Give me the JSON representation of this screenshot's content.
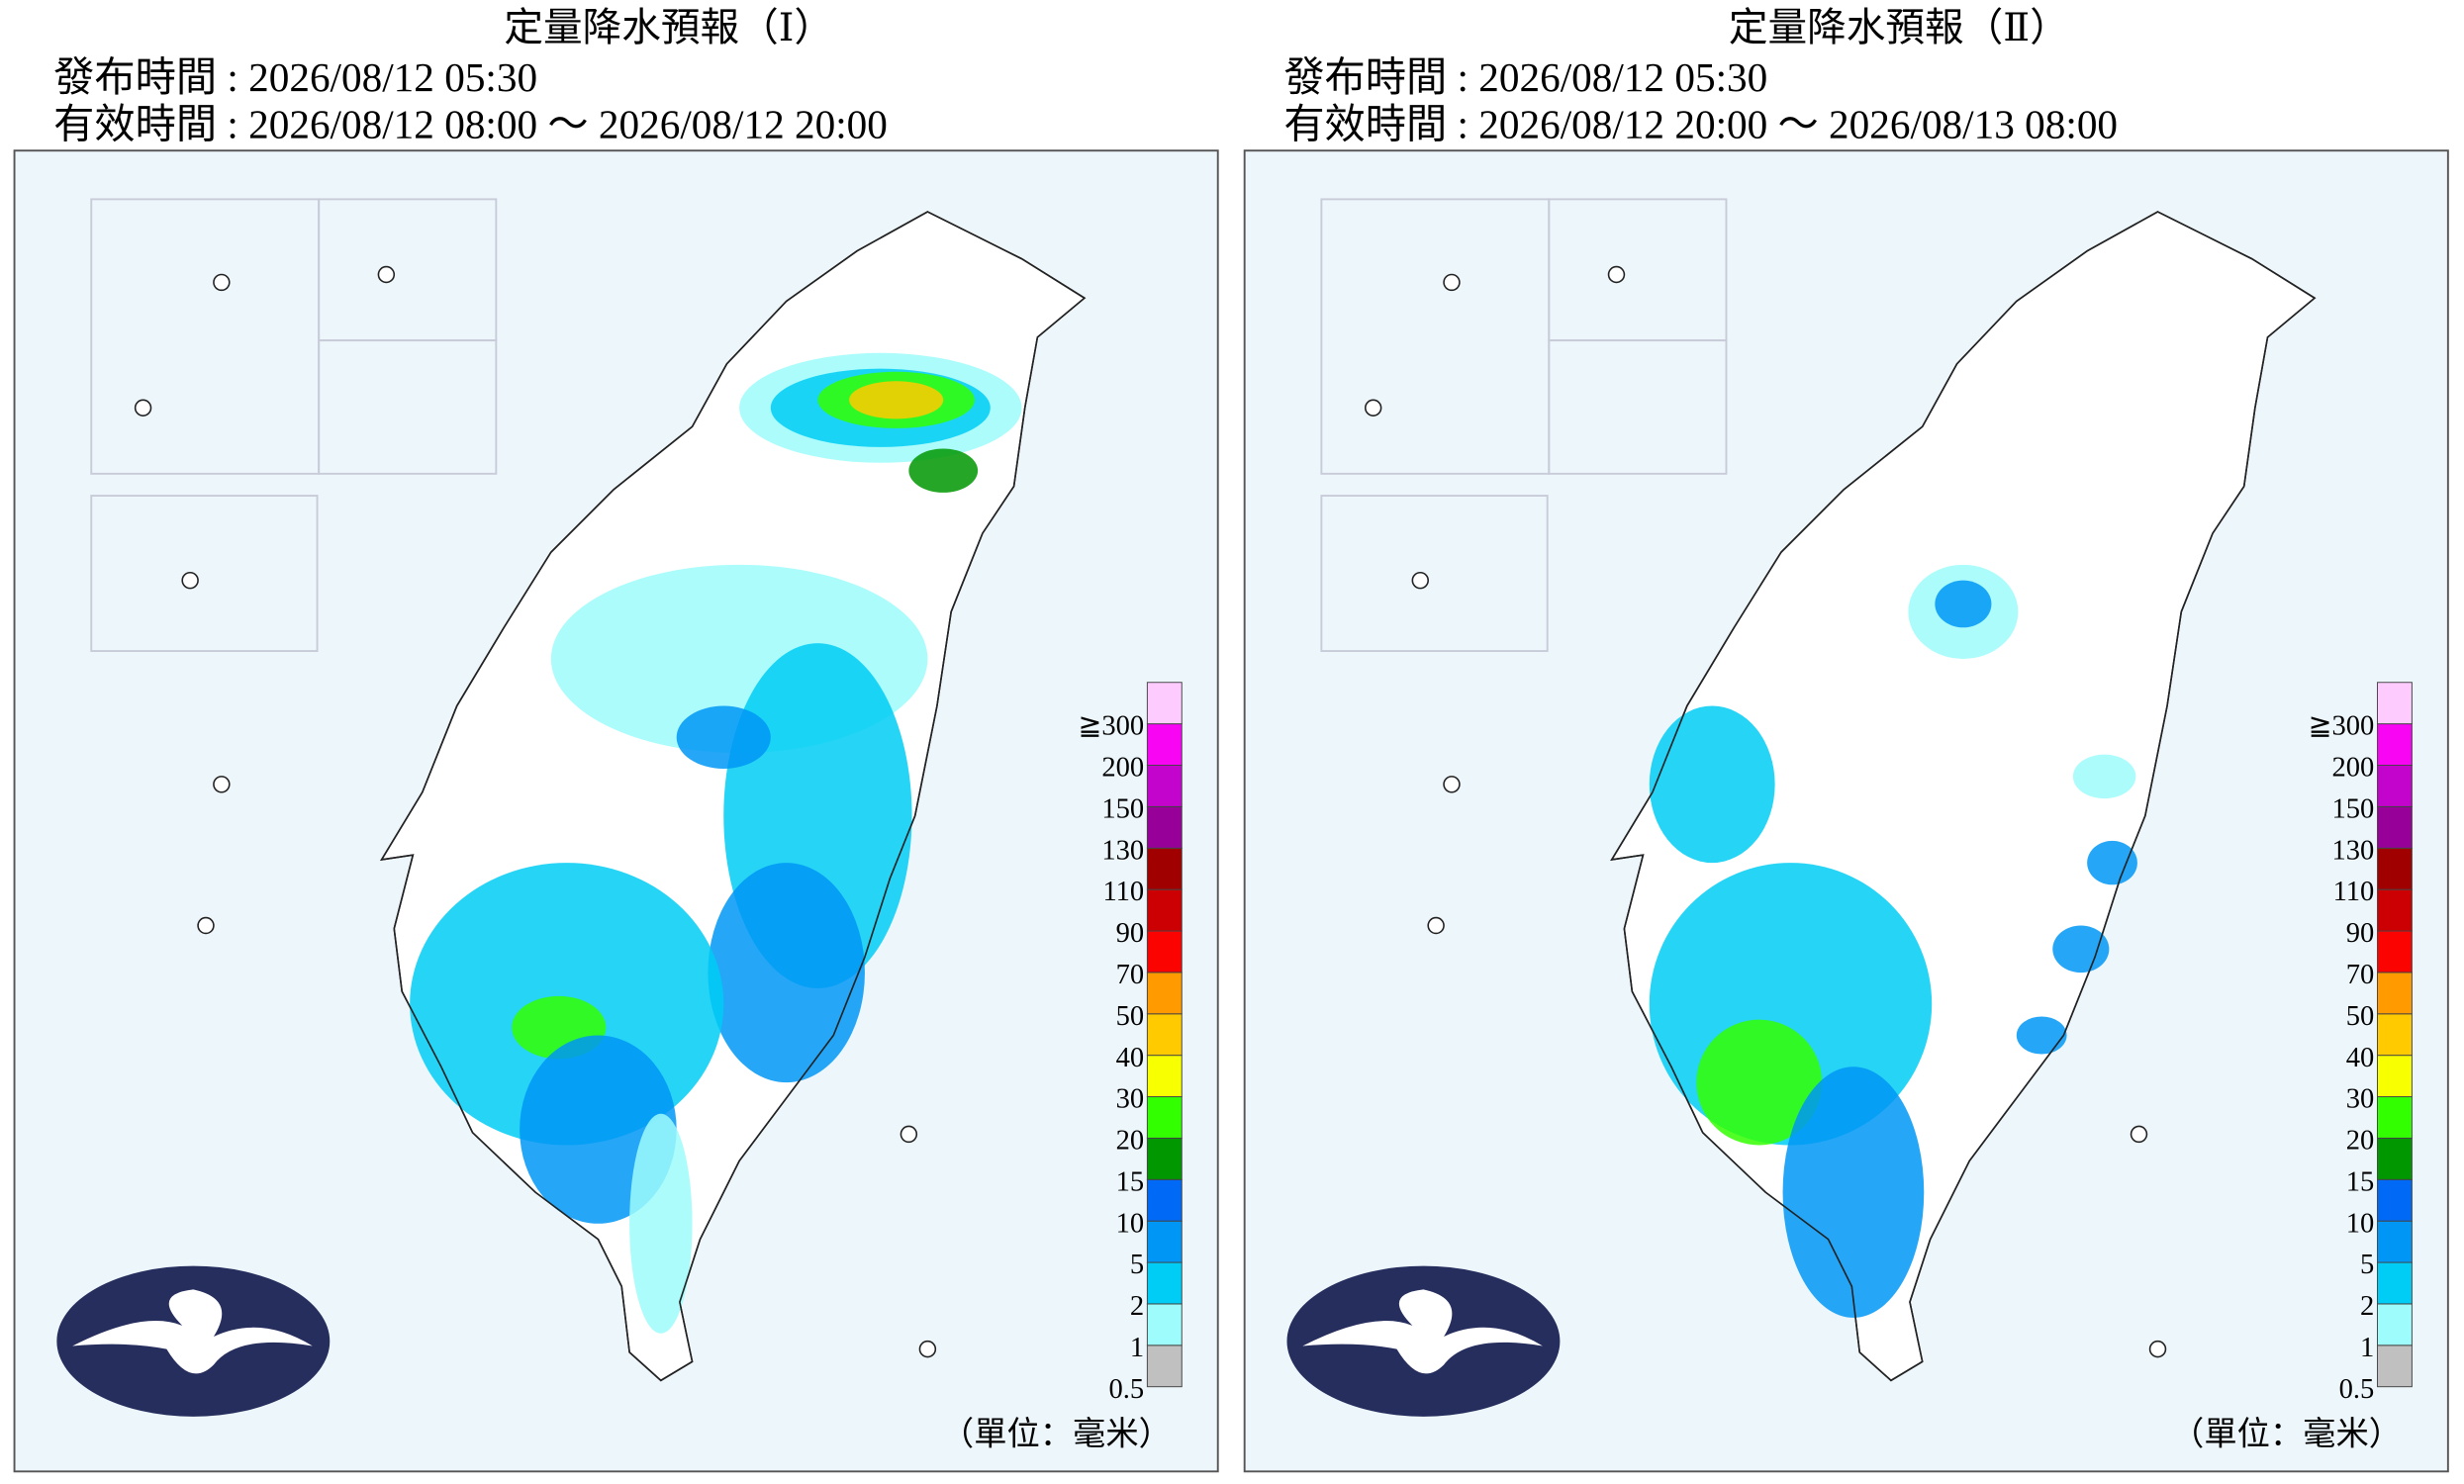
{
  "panels": [
    {
      "title": "定量降水預報（Ⅰ）",
      "issued": "發布時間 : 2026/08/12 05:30",
      "valid": "有效時間 : 2026/08/12 08:00 ～ 2026/08/12 20:00"
    },
    {
      "title": "定量降水預報（Ⅱ）",
      "issued": "發布時間 : 2026/08/12 05:30",
      "valid": "有效時間 : 2026/08/12 20:00 ～ 2026/08/13 08:00"
    }
  ],
  "legend": {
    "labels": [
      "0.5",
      "1",
      "2",
      "5",
      "10",
      "15",
      "20",
      "30",
      "40",
      "50",
      "70",
      "90",
      "110",
      "130",
      "150",
      "200",
      "≧300"
    ],
    "colors": [
      "#c0c0c0",
      "#9efcfc",
      "#00cdf5",
      "#0096f5",
      "#0069f5",
      "#009700",
      "#32ff00",
      "#f8ff00",
      "#ffcb00",
      "#ff9a00",
      "#fa0300",
      "#cc0003",
      "#a00000",
      "#98009a",
      "#c304cc",
      "#f805f3",
      "#fecbff"
    ],
    "unit": "（單位：毫米）"
  }
}
